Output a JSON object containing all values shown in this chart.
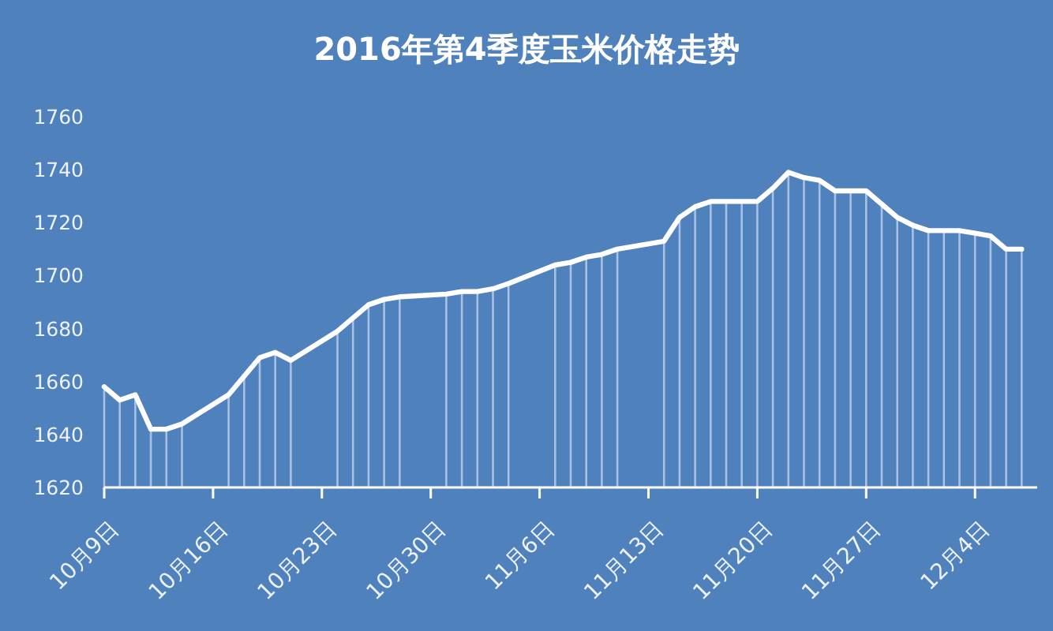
{
  "chart_data": {
    "type": "line",
    "title": "2016年第4季度玉米价格走势",
    "x": [
      "2016-10-09",
      "2016-10-10",
      "2016-10-11",
      "2016-10-12",
      "2016-10-13",
      "2016-10-14",
      "2016-10-17",
      "2016-10-18",
      "2016-10-19",
      "2016-10-20",
      "2016-10-21",
      "2016-10-24",
      "2016-10-25",
      "2016-10-26",
      "2016-10-27",
      "2016-10-28",
      "2016-10-31",
      "2016-11-01",
      "2016-11-02",
      "2016-11-03",
      "2016-11-04",
      "2016-11-07",
      "2016-11-08",
      "2016-11-09",
      "2016-11-10",
      "2016-11-11",
      "2016-11-14",
      "2016-11-15",
      "2016-11-16",
      "2016-11-17",
      "2016-11-18",
      "2016-11-19",
      "2016-11-20",
      "2016-11-21",
      "2016-11-22",
      "2016-11-23",
      "2016-11-24",
      "2016-11-25",
      "2016-11-26",
      "2016-11-27",
      "2016-11-28",
      "2016-11-29",
      "2016-11-30",
      "2016-12-01",
      "2016-12-02",
      "2016-12-03",
      "2016-12-04",
      "2016-12-05",
      "2016-12-06",
      "2016-12-07"
    ],
    "series": [
      {
        "type": "bar",
        "color": "#a9c1e2",
        "values": [
          1658,
          1653,
          1655,
          1642,
          1642,
          1644,
          1655,
          1662,
          1669,
          1671,
          1668,
          1679,
          1684,
          1689,
          1691,
          1692,
          1693,
          1694,
          1694,
          1695,
          1697,
          1704,
          1705,
          1707,
          1708,
          1710,
          1713,
          1722,
          1726,
          1728,
          1728,
          1728,
          1728,
          1733,
          1739,
          1737,
          1736,
          1732,
          1732,
          1732,
          1727,
          1722,
          1719,
          1717,
          1717,
          1717,
          1716,
          1715,
          1710,
          1710
        ]
      },
      {
        "color": "#ffffff",
        "values": [
          1658,
          1653,
          1655,
          1642,
          1642,
          1644,
          1655,
          1662,
          1669,
          1671,
          1668,
          1679,
          1684,
          1689,
          1691,
          1692,
          1693,
          1694,
          1694,
          1695,
          1697,
          1704,
          1705,
          1707,
          1708,
          1710,
          1713,
          1722,
          1726,
          1728,
          1728,
          1728,
          1728,
          1733,
          1739,
          1737,
          1736,
          1732,
          1732,
          1732,
          1727,
          1722,
          1719,
          1717,
          1717,
          1717,
          1716,
          1715,
          1710,
          1710
        ]
      }
    ],
    "xlim": [
      "2016-10-09",
      "2016-12-08"
    ],
    "xticks": [
      {
        "value": "2016-10-09",
        "label": "10月9日"
      },
      {
        "value": "2016-10-16",
        "label": "10月16日"
      },
      {
        "value": "2016-10-23",
        "label": "10月23日"
      },
      {
        "value": "2016-10-30",
        "label": "10月30日"
      },
      {
        "value": "2016-11-06",
        "label": "11月6日"
      },
      {
        "value": "2016-11-13",
        "label": "11月13日"
      },
      {
        "value": "2016-11-20",
        "label": "11月20日"
      },
      {
        "value": "2016-11-27",
        "label": "11月27日"
      },
      {
        "value": "2016-12-04",
        "label": "12月4日"
      }
    ],
    "ylim": [
      1620,
      1760
    ],
    "yticks": [
      1620,
      1640,
      1660,
      1680,
      1700,
      1720,
      1740,
      1760
    ]
  }
}
